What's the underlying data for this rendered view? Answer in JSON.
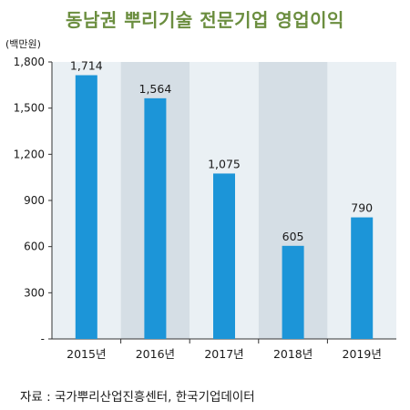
{
  "header": {
    "title": "동남권 뿌리기술 전문기업 영업이익",
    "unit": "(백만원)"
  },
  "footer": {
    "source": "자료 : 국가뿌리산업진흥센터, 한국기업데이터"
  },
  "colors": {
    "title": "#6b8e3f",
    "bar": "#1c95d8",
    "band_shade": "#d5dee5",
    "band_light": "#eaf0f4",
    "axis": "#333333"
  },
  "chart_data": {
    "type": "bar",
    "title": "동남권 뿌리기술 전문기업 영업이익",
    "xlabel": "",
    "ylabel": "(백만원)",
    "categories": [
      "2015년",
      "2016년",
      "2017년",
      "2018년",
      "2019년"
    ],
    "values": [
      1714,
      1564,
      1075,
      605,
      790
    ],
    "value_labels": [
      "1,714",
      "1,564",
      "1,075",
      "605",
      "790"
    ],
    "ylim": [
      0,
      1800
    ],
    "yticks": [
      0,
      300,
      600,
      900,
      1200,
      1500,
      1800
    ],
    "ytick_labels": [
      "-",
      "300",
      "600",
      "900",
      "1,200",
      "1,500",
      "1,800"
    ],
    "grid": false,
    "legend": "none"
  }
}
